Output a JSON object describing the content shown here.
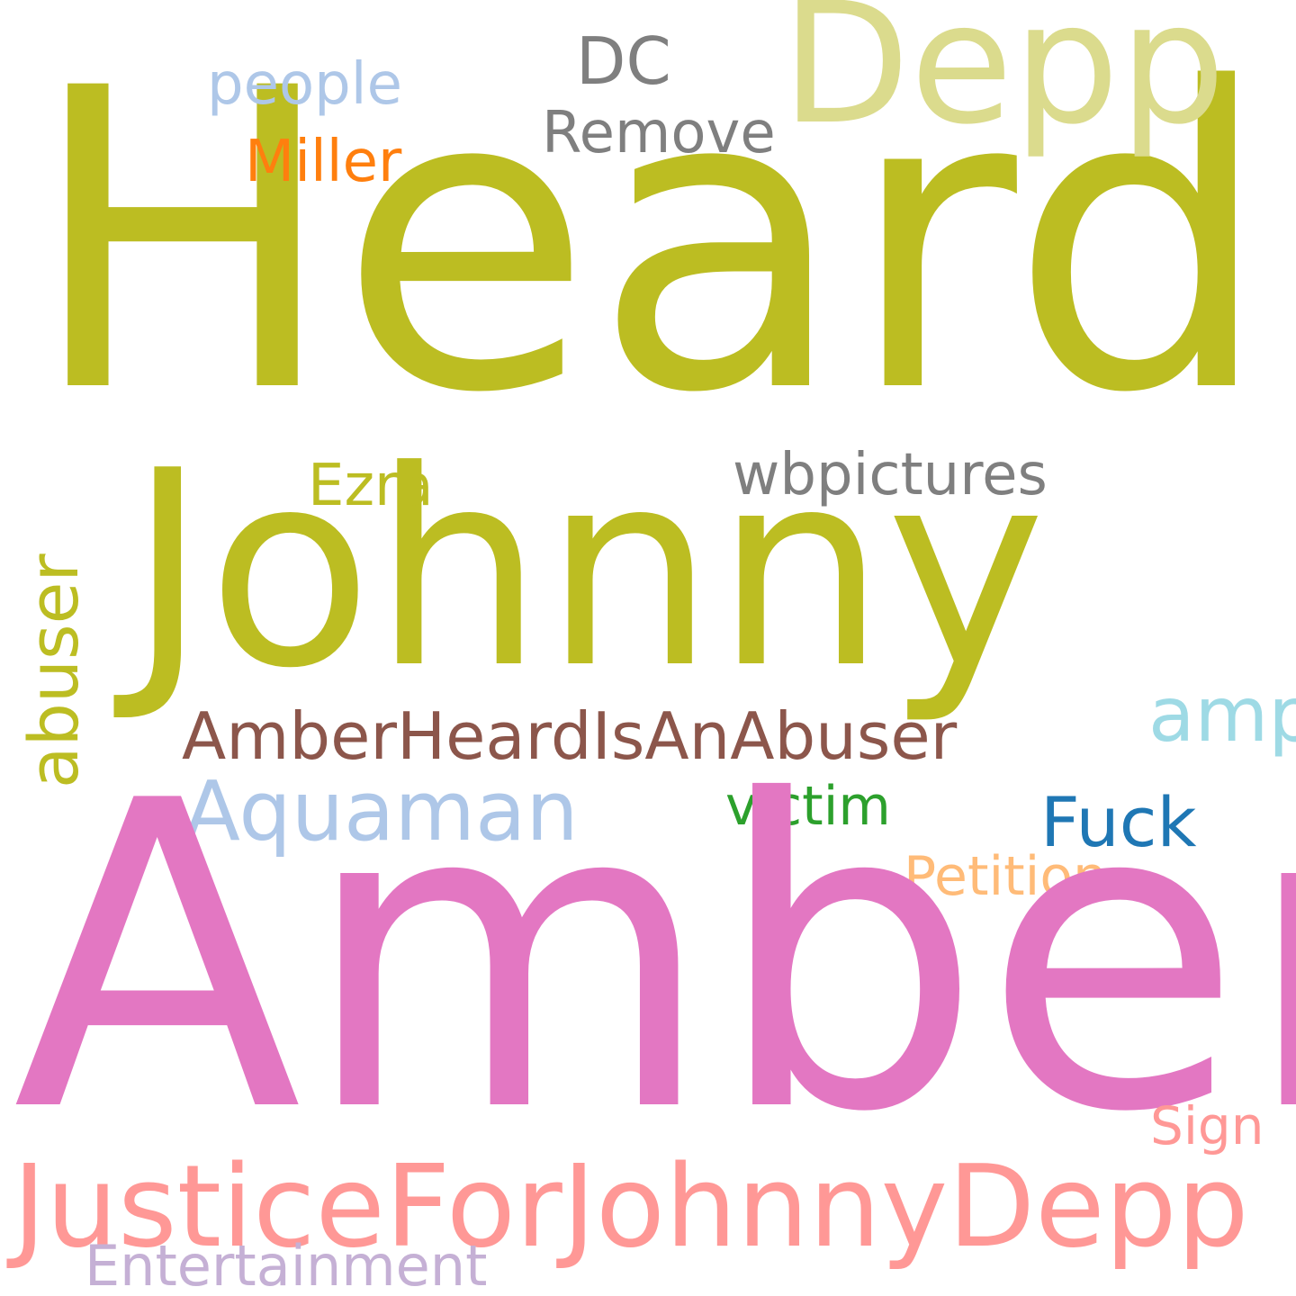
{
  "words": {
    "heard": {
      "text": "Heard",
      "color": "#bcbd22"
    },
    "amber": {
      "text": "Amber",
      "color": "#e377c2"
    },
    "johnny": {
      "text": "Johnny",
      "color": "#bcbd22"
    },
    "depp": {
      "text": "Depp",
      "color": "#dbdb8d"
    },
    "justice": {
      "text": "JusticeForJohnnyDepp",
      "color": "#ff9896"
    },
    "amberheard": {
      "text": "AmberHeardIsAnAbuser",
      "color": "#8c564b"
    },
    "aquaman": {
      "text": "Aquaman",
      "color": "#aec7e8"
    },
    "abuser": {
      "text": "abuser",
      "color": "#bcbd22"
    },
    "wbpictures": {
      "text": "wbpictures",
      "color": "#7f7f7f"
    },
    "amp": {
      "text": "amp",
      "color": "#9edae5"
    },
    "fuck": {
      "text": "Fuck",
      "color": "#1f77b4"
    },
    "petition": {
      "text": "Petition",
      "color": "#ffbb78"
    },
    "victim": {
      "text": "victim",
      "color": "#2ca02c"
    },
    "ezra": {
      "text": "Ezra",
      "color": "#bcbd22"
    },
    "miller": {
      "text": "Miller",
      "color": "#ff7f0e"
    },
    "remove": {
      "text": "Remove",
      "color": "#7f7f7f"
    },
    "dc": {
      "text": "DC",
      "color": "#7f7f7f"
    },
    "people": {
      "text": "people",
      "color": "#aec7e8"
    },
    "sign": {
      "text": "Sign",
      "color": "#ff9896"
    },
    "entertainment": {
      "text": "Entertainment",
      "color": "#c5b0d5"
    }
  }
}
